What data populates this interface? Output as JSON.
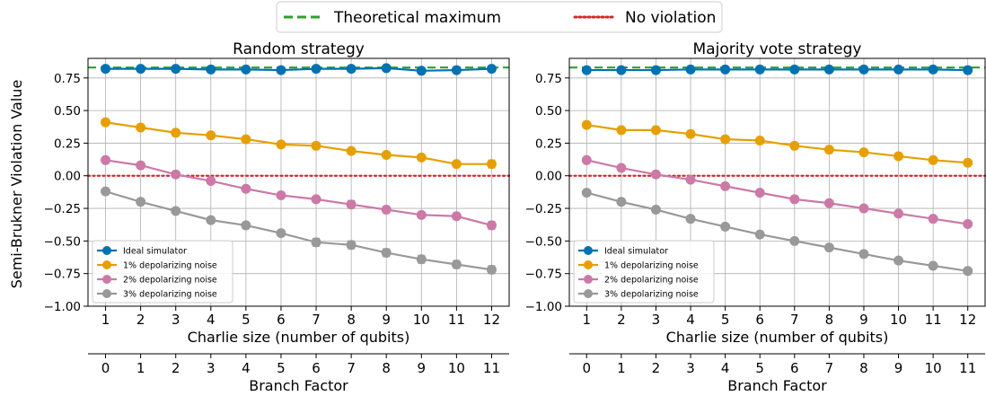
{
  "figure": {
    "ylabel": "Semi-Brukner Violation Value",
    "legend": [
      {
        "label": "Theoretical maximum",
        "color": "#2ca02c",
        "dash": "dashed"
      },
      {
        "label": "No violation",
        "color": "#d62728",
        "dash": "dotted"
      }
    ]
  },
  "chart_data": [
    {
      "type": "line",
      "title": "Random strategy",
      "xlabel": "Charlie size (number of qubits)",
      "ylabel": "Semi-Brukner Violation Value",
      "x": [
        1,
        2,
        3,
        4,
        5,
        6,
        7,
        8,
        9,
        10,
        11,
        12
      ],
      "x_secondary": {
        "label": "Branch Factor",
        "ticks": [
          0,
          1,
          2,
          3,
          4,
          5,
          6,
          7,
          8,
          9,
          10,
          11
        ]
      },
      "ylim": [
        -1.0,
        0.9
      ],
      "yticks": [
        "0.75",
        "0.50",
        "0.25",
        "0.00",
        "−0.25",
        "−0.50",
        "−0.75",
        "−1.00"
      ],
      "grid": true,
      "reference_lines": [
        {
          "name": "Theoretical maximum",
          "y": 0.83,
          "color": "#2ca02c",
          "style": "dashed"
        },
        {
          "name": "No violation",
          "y": 0.0,
          "color": "#d62728",
          "style": "dotted"
        }
      ],
      "legend_position": "lower-left",
      "series": [
        {
          "name": "Ideal simulator",
          "color": "#0072b2",
          "values": [
            0.82,
            0.82,
            0.82,
            0.815,
            0.815,
            0.81,
            0.82,
            0.82,
            0.825,
            0.805,
            0.81,
            0.82
          ],
          "errors": [
            0.015,
            0.015,
            0.015,
            0.015,
            0.015,
            0.015,
            0.015,
            0.015,
            0.015,
            0.015,
            0.015,
            0.015
          ]
        },
        {
          "name": "1% depolarizing noise",
          "color": "#e69f00",
          "values": [
            0.41,
            0.37,
            0.33,
            0.31,
            0.28,
            0.24,
            0.23,
            0.19,
            0.16,
            0.14,
            0.09,
            0.09
          ],
          "errors": [
            0.015,
            0.015,
            0.015,
            0.015,
            0.015,
            0.015,
            0.015,
            0.015,
            0.015,
            0.015,
            0.02,
            0.03
          ]
        },
        {
          "name": "2% depolarizing noise",
          "color": "#cc79a7",
          "values": [
            0.12,
            0.08,
            0.01,
            -0.04,
            -0.1,
            -0.15,
            -0.18,
            -0.22,
            -0.26,
            -0.3,
            -0.31,
            -0.38
          ],
          "errors": [
            0.015,
            0.015,
            0.015,
            0.02,
            0.02,
            0.02,
            0.02,
            0.03,
            0.025,
            0.02,
            0.02,
            0.03
          ]
        },
        {
          "name": "3% depolarizing noise",
          "color": "#999999",
          "values": [
            -0.12,
            -0.2,
            -0.27,
            -0.34,
            -0.38,
            -0.44,
            -0.51,
            -0.53,
            -0.59,
            -0.64,
            -0.68,
            -0.72
          ],
          "errors": [
            0.015,
            0.015,
            0.015,
            0.02,
            0.02,
            0.02,
            0.03,
            0.03,
            0.03,
            0.03,
            0.03,
            0.03
          ]
        }
      ]
    },
    {
      "type": "line",
      "title": "Majority vote strategy",
      "xlabel": "Charlie size (number of qubits)",
      "ylabel": "Semi-Brukner Violation Value",
      "x": [
        1,
        2,
        3,
        4,
        5,
        6,
        7,
        8,
        9,
        10,
        11,
        12
      ],
      "x_secondary": {
        "label": "Branch Factor",
        "ticks": [
          0,
          1,
          2,
          3,
          4,
          5,
          6,
          7,
          8,
          9,
          10,
          11
        ]
      },
      "ylim": [
        -1.0,
        0.9
      ],
      "yticks": [
        "0.75",
        "0.50",
        "0.25",
        "0.00",
        "−0.25",
        "−0.50",
        "−0.75",
        "−1.00"
      ],
      "grid": true,
      "reference_lines": [
        {
          "name": "Theoretical maximum",
          "y": 0.83,
          "color": "#2ca02c",
          "style": "dashed"
        },
        {
          "name": "No violation",
          "y": 0.0,
          "color": "#d62728",
          "style": "dotted"
        }
      ],
      "legend_position": "lower-left",
      "series": [
        {
          "name": "Ideal simulator",
          "color": "#0072b2",
          "values": [
            0.81,
            0.81,
            0.81,
            0.815,
            0.815,
            0.815,
            0.815,
            0.815,
            0.815,
            0.815,
            0.815,
            0.81
          ],
          "errors": [
            0.01,
            0.01,
            0.01,
            0.01,
            0.01,
            0.01,
            0.01,
            0.01,
            0.01,
            0.01,
            0.01,
            0.01
          ]
        },
        {
          "name": "1% depolarizing noise",
          "color": "#e69f00",
          "values": [
            0.39,
            0.35,
            0.35,
            0.32,
            0.28,
            0.27,
            0.23,
            0.2,
            0.18,
            0.15,
            0.12,
            0.1
          ],
          "errors": [
            0.01,
            0.01,
            0.01,
            0.01,
            0.01,
            0.01,
            0.01,
            0.01,
            0.01,
            0.01,
            0.01,
            0.01
          ]
        },
        {
          "name": "2% depolarizing noise",
          "color": "#cc79a7",
          "values": [
            0.12,
            0.06,
            0.01,
            -0.03,
            -0.08,
            -0.13,
            -0.18,
            -0.21,
            -0.25,
            -0.29,
            -0.33,
            -0.37
          ],
          "errors": [
            0.01,
            0.01,
            0.01,
            0.01,
            0.01,
            0.01,
            0.01,
            0.01,
            0.01,
            0.01,
            0.01,
            0.01
          ]
        },
        {
          "name": "3% depolarizing noise",
          "color": "#999999",
          "values": [
            -0.13,
            -0.2,
            -0.26,
            -0.33,
            -0.39,
            -0.45,
            -0.5,
            -0.55,
            -0.6,
            -0.65,
            -0.69,
            -0.73
          ],
          "errors": [
            0.01,
            0.01,
            0.01,
            0.01,
            0.01,
            0.01,
            0.01,
            0.01,
            0.01,
            0.01,
            0.01,
            0.01
          ]
        }
      ]
    }
  ]
}
